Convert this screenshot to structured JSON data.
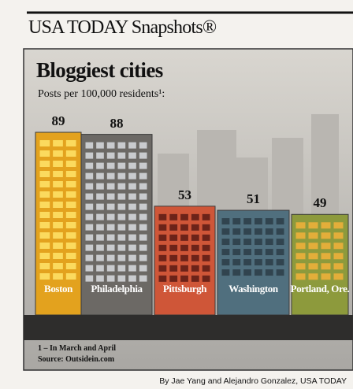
{
  "header": "USA TODAY Snapshots®",
  "chart_data": {
    "type": "bar",
    "title": "Bloggiest cities",
    "subtitle": "Posts per 100,000 residents¹:",
    "categories": [
      "Boston",
      "Philadelphia",
      "Pittsburgh",
      "Washington",
      "Portland, Ore."
    ],
    "values": [
      89,
      88,
      53,
      51,
      49
    ],
    "colors": [
      "#e3a21e",
      "#6c6965",
      "#cf5638",
      "#506f7e",
      "#8d9a3c"
    ],
    "footnote": "1 – In March and April",
    "source": "Source: Outsidein.com"
  },
  "credit": "By Jae Yang and Alejandro Gonzalez, USA TODAY"
}
